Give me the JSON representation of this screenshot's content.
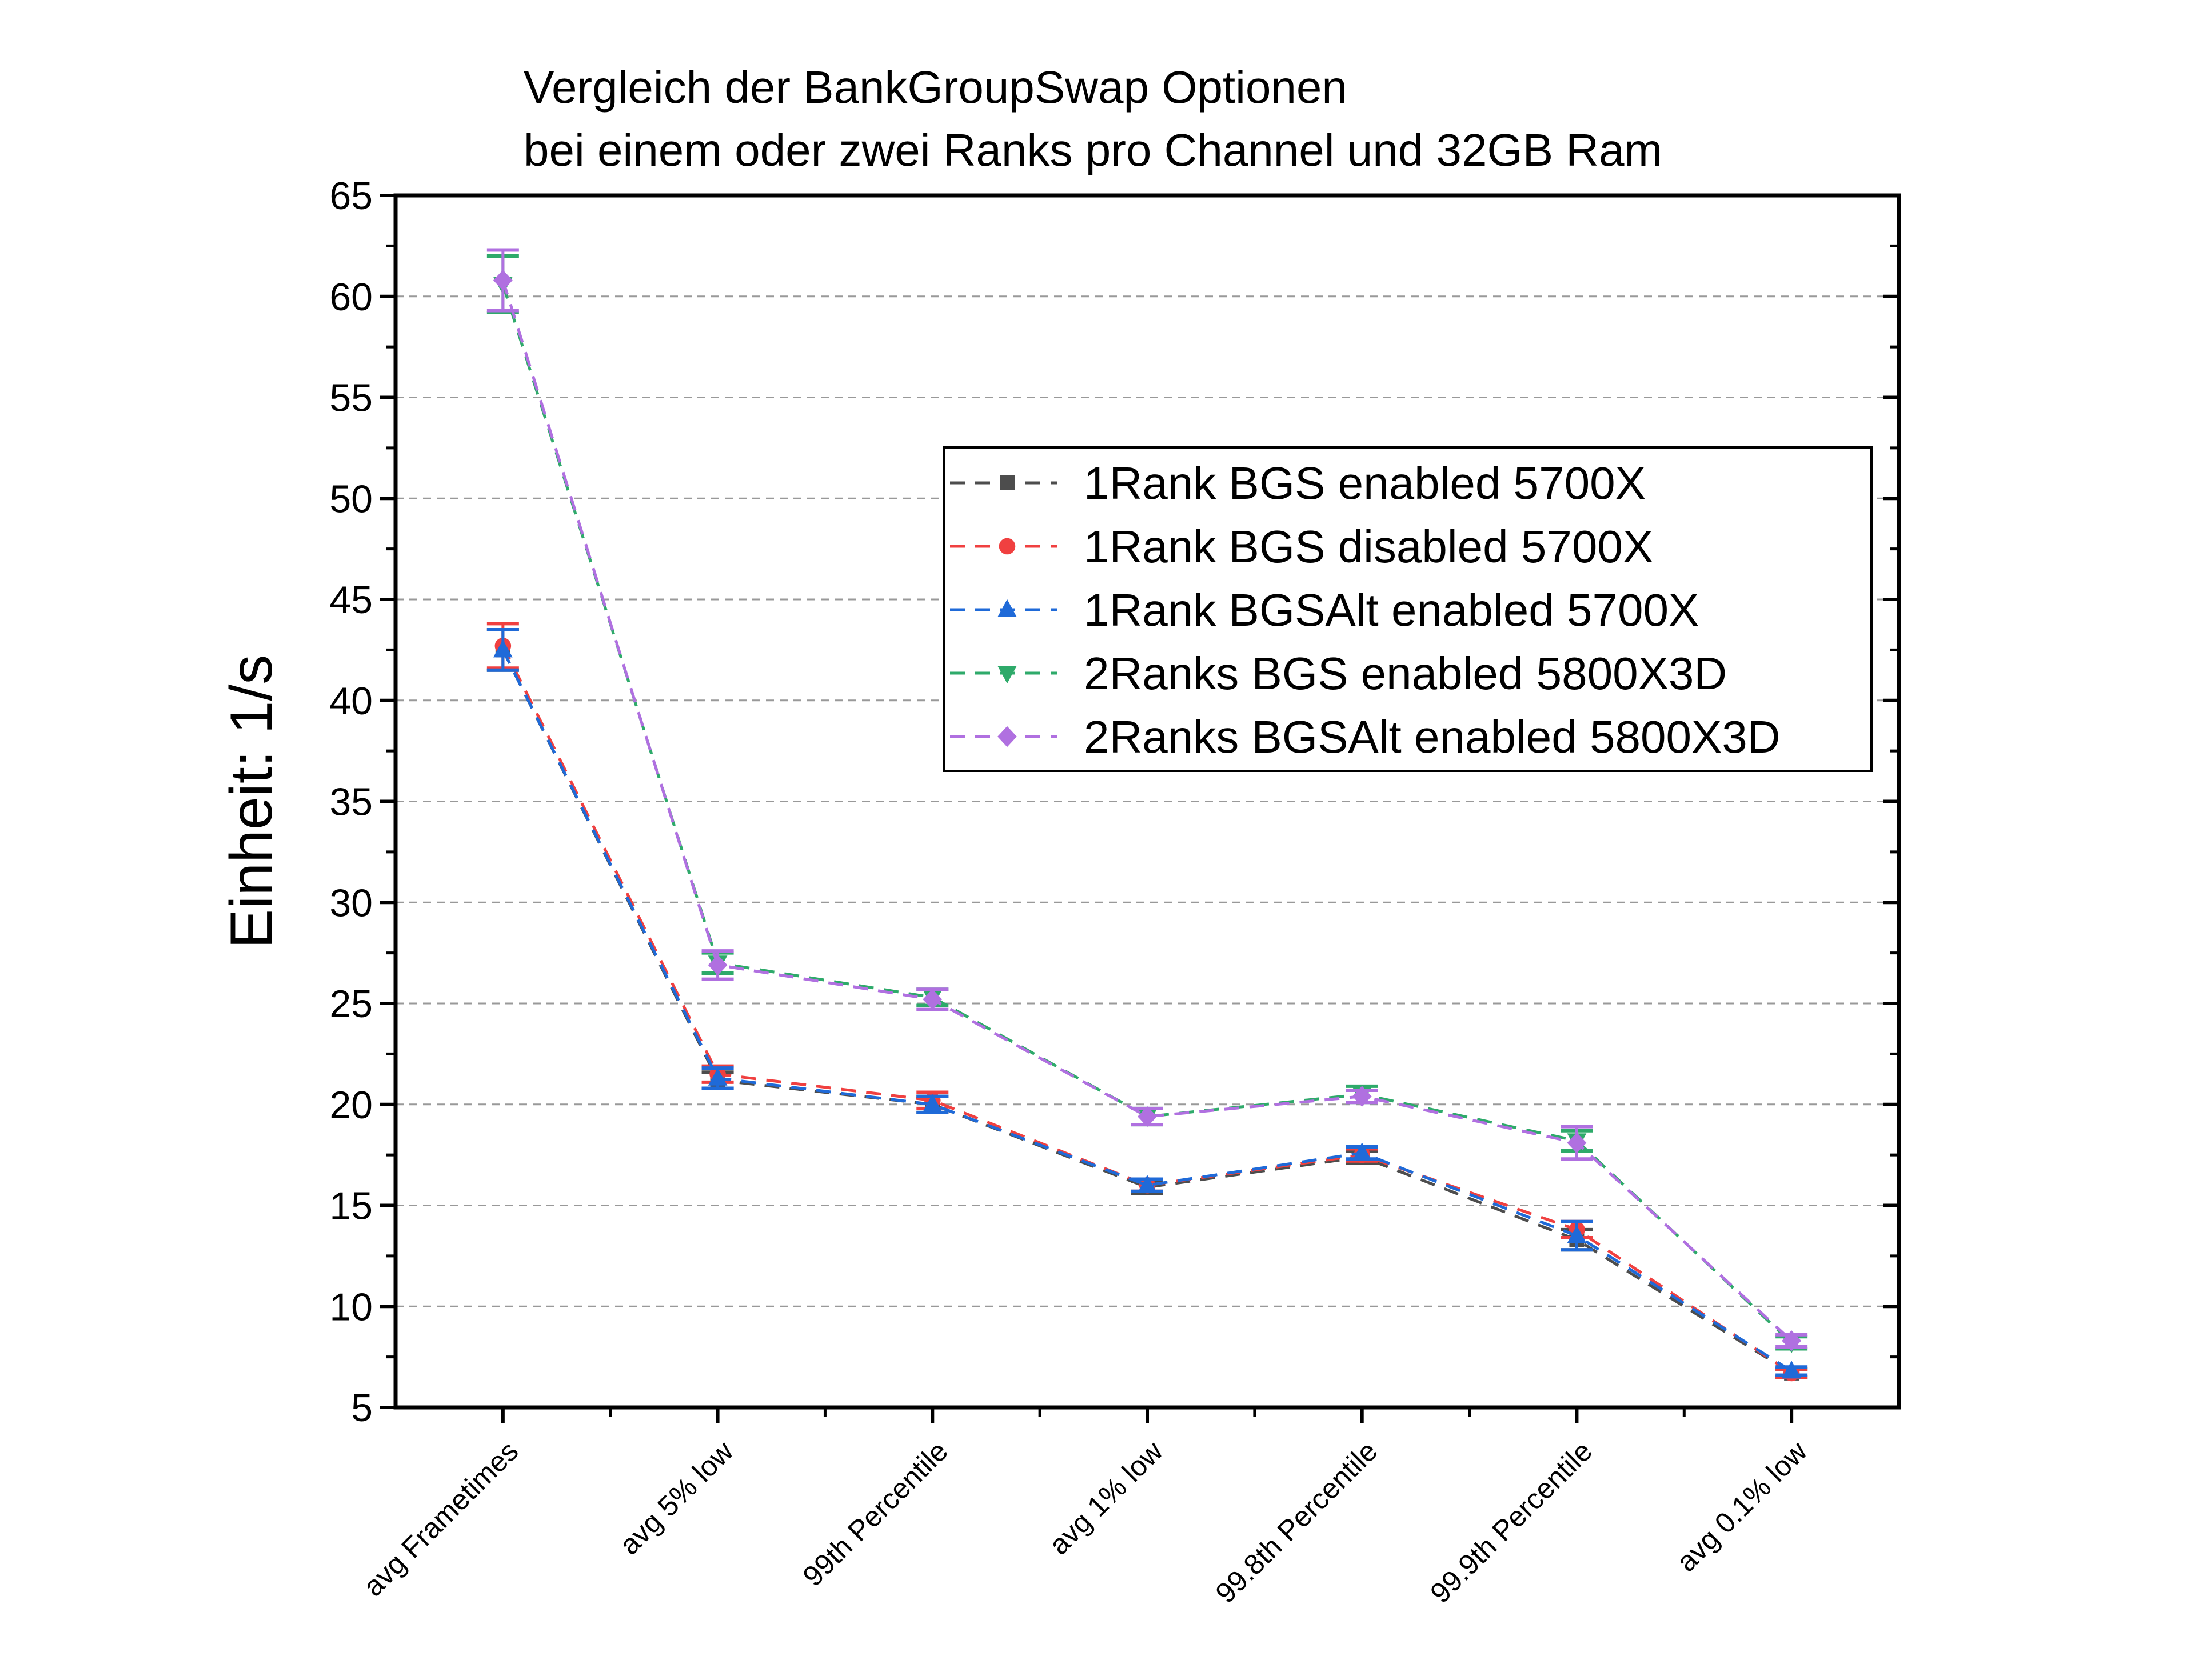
{
  "chart_data": {
    "type": "line",
    "title_lines": [
      "Vergleich der BankGroupSwap Optionen",
      "bei einem oder zwei Ranks pro Channel und 32GB Ram"
    ],
    "xlabel": "",
    "ylabel": "Einheit: 1/s",
    "ylim": [
      5,
      65
    ],
    "yticks": [
      5,
      10,
      15,
      20,
      25,
      30,
      35,
      40,
      45,
      50,
      55,
      60,
      65
    ],
    "grid": "horizontal dashed",
    "legend_placement": "center-right",
    "categories": [
      "avg Frametimes",
      "avg 5% low",
      "99th Percentile",
      "avg 1% low",
      "99.8th Percentile",
      "99.9th Percentile",
      "avg 0.1% low"
    ],
    "series": [
      {
        "name": "1Rank BGS enabled 5700X",
        "color": "#4d4d4d",
        "marker": "square",
        "values": [
          42.5,
          21.2,
          20.0,
          15.9,
          17.4,
          13.3,
          6.7
        ],
        "errors": [
          1.0,
          0.4,
          0.4,
          0.3,
          0.3,
          0.5,
          0.2
        ]
      },
      {
        "name": "1Rank BGS disabled 5700X",
        "color": "#f04040",
        "marker": "circle",
        "values": [
          42.7,
          21.5,
          20.2,
          16.0,
          17.5,
          13.8,
          6.7
        ],
        "errors": [
          1.1,
          0.4,
          0.4,
          0.3,
          0.3,
          0.4,
          0.2
        ]
      },
      {
        "name": "1Rank BGSAlt enabled 5700X",
        "color": "#1f6ad8",
        "marker": "triangle-up",
        "values": [
          42.5,
          21.3,
          20.0,
          16.0,
          17.6,
          13.5,
          6.8
        ],
        "errors": [
          1.0,
          0.5,
          0.4,
          0.3,
          0.3,
          0.7,
          0.2
        ]
      },
      {
        "name": "2Ranks BGS enabled 5800X3D",
        "color": "#2eaa6a",
        "marker": "triangle-down",
        "values": [
          60.6,
          27.0,
          25.3,
          19.4,
          20.5,
          18.2,
          8.2
        ],
        "errors": [
          1.4,
          0.5,
          0.4,
          0.4,
          0.4,
          0.5,
          0.3
        ]
      },
      {
        "name": "2Ranks BGSAlt enabled 5800X3D",
        "color": "#b070e0",
        "marker": "diamond",
        "values": [
          60.8,
          26.9,
          25.2,
          19.4,
          20.4,
          18.1,
          8.3
        ],
        "errors": [
          1.5,
          0.7,
          0.5,
          0.4,
          0.3,
          0.8,
          0.3
        ]
      }
    ]
  }
}
